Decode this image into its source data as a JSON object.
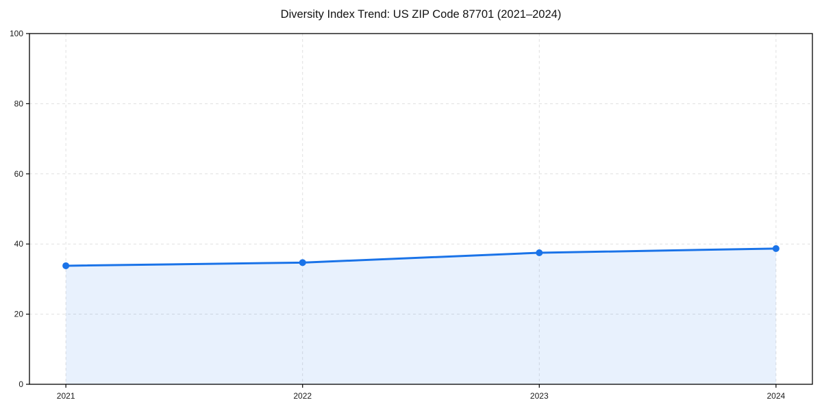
{
  "title": "Diversity Index Trend: US ZIP Code 87701 (2021–2024)",
  "colors": {
    "line": "#1a73e8",
    "marker": "#1a73e8",
    "fill": "rgba(26,115,232,0.10)",
    "grid": "#e0e0e0",
    "axis": "#000000",
    "tick_text": "#1a1a1a",
    "background": "#ffffff"
  },
  "chart_data": {
    "type": "area",
    "x": [
      "2021",
      "2022",
      "2023",
      "2024"
    ],
    "series": [
      {
        "name": "Diversity Index",
        "values": [
          33.8,
          34.7,
          37.5,
          38.7
        ]
      }
    ],
    "title": "Diversity Index Trend: US ZIP Code 87701 (2021–2024)",
    "xlabel": "",
    "ylabel": "",
    "ylim": [
      0,
      100
    ],
    "yticks": [
      0,
      20,
      40,
      60,
      80,
      100
    ],
    "grid": true,
    "grid_style": "dashed",
    "legend": "none",
    "markers": true,
    "frame": "full-box"
  }
}
